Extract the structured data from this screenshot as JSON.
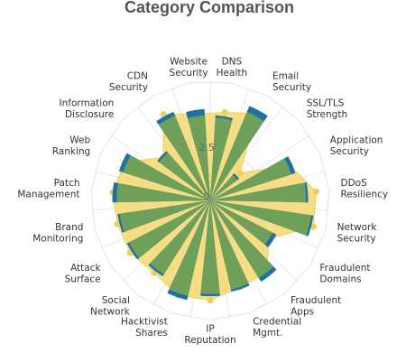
{
  "chart_data": {
    "type": "radar",
    "title": "Category Comparison",
    "categories": [
      "DNS Health",
      "Email Security",
      "SSL/TLS Strength",
      "Application Security",
      "DDoS Resiliency",
      "Network Security",
      "Fraudulent Domains",
      "Fraudulent Apps",
      "Credential Mgmt.",
      "IP Reputation",
      "Hacktivist Shares",
      "Social Network",
      "Attack Surface",
      "Brand Monitoring",
      "Patch Management",
      "Web Ranking",
      "Information Disclosure",
      "CDN Security",
      "Website Security"
    ],
    "radial_ticks": [
      {
        "value": 0,
        "label": "0"
      },
      {
        "value": 2.5,
        "label": "2.5"
      }
    ],
    "rmax": 5,
    "series": [
      {
        "color": "#f6d76f",
        "opacity": 0.85,
        "values": [
          4.2,
          4.6,
          1.9,
          4.1,
          5.0,
          5.0,
          3.3,
          4.3,
          4.3,
          4.7,
          4.7,
          4.3,
          4.5,
          4.5,
          4.6,
          4.4,
          3.0,
          4.6,
          4.1
        ]
      },
      {
        "color": "#1f6fa8",
        "values": [
          4.0,
          4.8,
          1.7,
          4.2,
          4.6,
          4.9,
          3.5,
          4.5,
          4.4,
          4.5,
          4.8,
          4.2,
          4.4,
          4.4,
          4.6,
          4.5,
          3.1,
          4.5,
          4.3
        ]
      },
      {
        "color": "#6fa05a",
        "values": [
          3.9,
          4.5,
          1.6,
          4.0,
          4.5,
          4.8,
          3.3,
          4.3,
          4.3,
          4.4,
          4.6,
          4.1,
          4.3,
          4.3,
          4.4,
          4.3,
          3.0,
          4.3,
          4.0
        ]
      }
    ]
  }
}
